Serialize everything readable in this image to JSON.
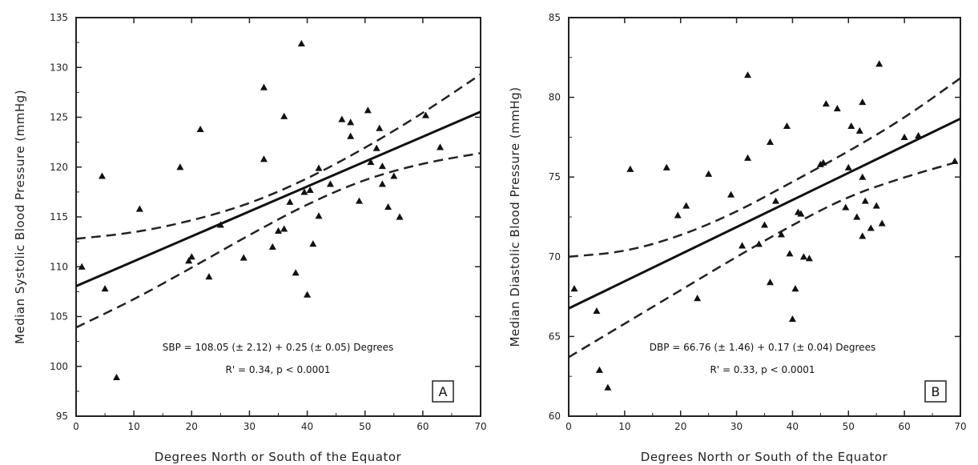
{
  "chart_data": [
    {
      "type": "scatter",
      "panel_label": "A",
      "xlabel": "Degrees North or South of the Equator",
      "ylabel": "Median Systolic Blood Pressure (mmHg)",
      "xlim": [
        0,
        70
      ],
      "ylim": [
        95,
        135
      ],
      "xticks": [
        0,
        10,
        20,
        30,
        40,
        50,
        60,
        70
      ],
      "yticks": [
        95,
        100,
        105,
        110,
        115,
        120,
        125,
        130,
        135
      ],
      "equation": "SBP = 108.05 (± 2.12) + 0.25 (± 0.05) Degrees",
      "stats": "R' = 0.34, p < 0.0001",
      "regression": {
        "intercept": 108.05,
        "slope": 0.25
      },
      "ci_lower": [
        [
          0,
          103.9
        ],
        [
          10,
          106.7
        ],
        [
          20,
          109.9
        ],
        [
          30,
          113.2
        ],
        [
          40,
          116.3
        ],
        [
          50,
          118.8
        ],
        [
          60,
          120.4
        ],
        [
          70,
          121.4
        ]
      ],
      "ci_upper": [
        [
          0,
          112.8
        ],
        [
          10,
          113.4
        ],
        [
          20,
          114.6
        ],
        [
          30,
          116.3
        ],
        [
          40,
          118.8
        ],
        [
          50,
          121.9
        ],
        [
          60,
          125.4
        ],
        [
          70,
          129.3
        ]
      ],
      "points": [
        [
          1,
          110
        ],
        [
          4.5,
          119.1
        ],
        [
          5,
          107.8
        ],
        [
          7,
          98.9
        ],
        [
          11,
          115.8
        ],
        [
          18,
          120
        ],
        [
          19.5,
          110.6
        ],
        [
          20,
          111
        ],
        [
          21.5,
          123.8
        ],
        [
          23,
          109
        ],
        [
          25,
          114.2
        ],
        [
          29,
          110.9
        ],
        [
          32.5,
          128
        ],
        [
          32.5,
          120.8
        ],
        [
          34,
          112
        ],
        [
          35,
          113.6
        ],
        [
          36,
          125.1
        ],
        [
          36,
          113.8
        ],
        [
          37,
          116.5
        ],
        [
          38,
          109.4
        ],
        [
          39,
          132.4
        ],
        [
          39.5,
          117.5
        ],
        [
          40,
          107.2
        ],
        [
          40.5,
          117.7
        ],
        [
          41,
          112.3
        ],
        [
          42,
          115.1
        ],
        [
          42,
          119.9
        ],
        [
          44,
          118.3
        ],
        [
          46,
          124.8
        ],
        [
          47.5,
          124.5
        ],
        [
          47.5,
          123.1
        ],
        [
          49,
          116.6
        ],
        [
          50.5,
          125.7
        ],
        [
          51,
          120.5
        ],
        [
          52,
          121.9
        ],
        [
          52.5,
          123.9
        ],
        [
          53,
          118.3
        ],
        [
          53,
          120.1
        ],
        [
          54,
          116
        ],
        [
          55,
          119.1
        ],
        [
          56,
          115
        ],
        [
          60.5,
          125.2
        ],
        [
          63,
          122
        ]
      ]
    },
    {
      "type": "scatter",
      "panel_label": "B",
      "xlabel": "Degrees North or South of the Equator",
      "ylabel": "Median Diastolic Blood Pressure (mmHg)",
      "xlim": [
        0,
        70
      ],
      "ylim": [
        60,
        85
      ],
      "xticks": [
        0,
        10,
        20,
        30,
        40,
        50,
        60,
        70
      ],
      "yticks": [
        60,
        65,
        70,
        75,
        80,
        85
      ],
      "equation": "DBP = 66.76 (± 1.46) + 0.17 (± 0.04) Degrees",
      "stats": "R' = 0.33, p < 0.0001",
      "regression": {
        "intercept": 66.76,
        "slope": 0.17
      },
      "ci_lower": [
        [
          0,
          63.7
        ],
        [
          10,
          65.8
        ],
        [
          20,
          67.9
        ],
        [
          30,
          70.0
        ],
        [
          40,
          72.0
        ],
        [
          50,
          73.8
        ],
        [
          60,
          75.0
        ],
        [
          70,
          76.0
        ]
      ],
      "ci_upper": [
        [
          0,
          70.0
        ],
        [
          10,
          70.3
        ],
        [
          20,
          71.3
        ],
        [
          30,
          72.8
        ],
        [
          40,
          74.7
        ],
        [
          50,
          76.6
        ],
        [
          60,
          78.7
        ],
        [
          70,
          81.2
        ]
      ],
      "points": [
        [
          1,
          68
        ],
        [
          5,
          66.6
        ],
        [
          5.5,
          62.9
        ],
        [
          7,
          61.8
        ],
        [
          11,
          75.5
        ],
        [
          17.5,
          75.6
        ],
        [
          19.5,
          72.6
        ],
        [
          21,
          73.2
        ],
        [
          23,
          67.4
        ],
        [
          25,
          75.2
        ],
        [
          29,
          73.9
        ],
        [
          31,
          70.7
        ],
        [
          32,
          81.4
        ],
        [
          32,
          76.2
        ],
        [
          34,
          70.8
        ],
        [
          35,
          72
        ],
        [
          36,
          77.2
        ],
        [
          36,
          68.4
        ],
        [
          37,
          73.5
        ],
        [
          38,
          71.4
        ],
        [
          39,
          78.2
        ],
        [
          39.5,
          70.2
        ],
        [
          40,
          66.1
        ],
        [
          40.5,
          68
        ],
        [
          41,
          72.8
        ],
        [
          41.5,
          72.7
        ],
        [
          42,
          70
        ],
        [
          43,
          69.9
        ],
        [
          45,
          75.8
        ],
        [
          45.5,
          75.9
        ],
        [
          46,
          79.6
        ],
        [
          48,
          79.3
        ],
        [
          49.5,
          73.1
        ],
        [
          50,
          75.6
        ],
        [
          50.5,
          78.2
        ],
        [
          51.5,
          72.5
        ],
        [
          52,
          77.9
        ],
        [
          52.5,
          79.7
        ],
        [
          52.5,
          75
        ],
        [
          52.5,
          71.3
        ],
        [
          53,
          73.5
        ],
        [
          54,
          71.8
        ],
        [
          55,
          73.2
        ],
        [
          56,
          72.1
        ],
        [
          55.5,
          82.1
        ],
        [
          60,
          77.5
        ],
        [
          62.5,
          77.6
        ],
        [
          69,
          76
        ]
      ]
    }
  ]
}
